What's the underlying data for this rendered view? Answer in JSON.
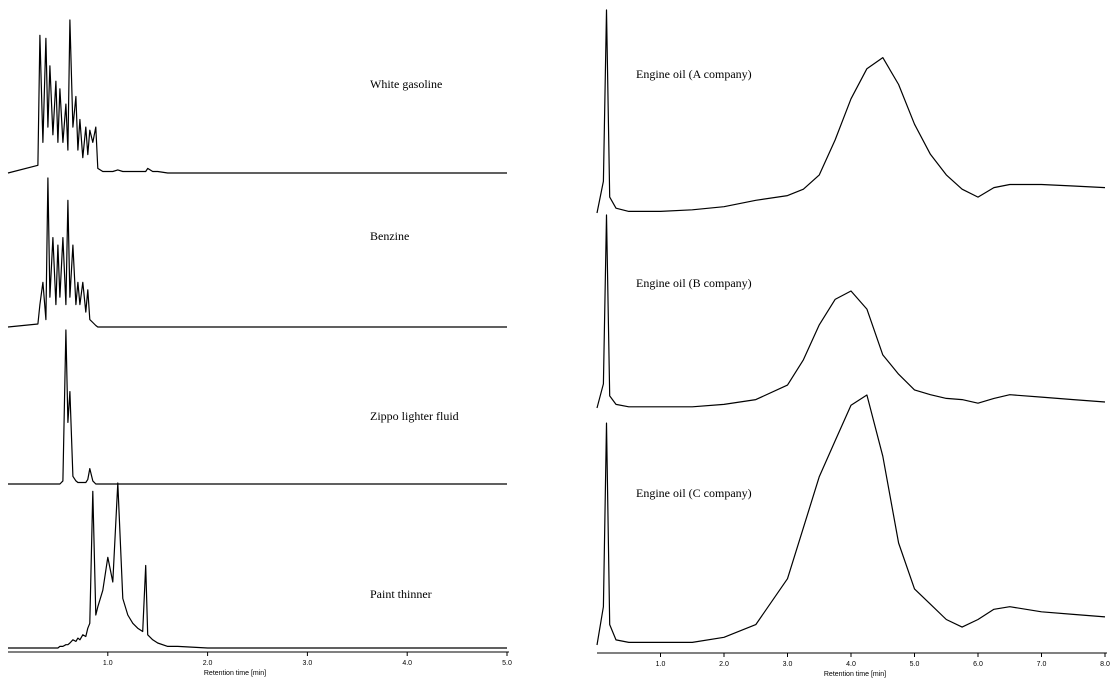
{
  "chart_data": [
    {
      "type": "line",
      "x": [
        0,
        0.3,
        0.32,
        0.35,
        0.38,
        0.4,
        0.42,
        0.45,
        0.48,
        0.5,
        0.52,
        0.55,
        0.58,
        0.6,
        0.62,
        0.65,
        0.68,
        0.7,
        0.72,
        0.75,
        0.78,
        0.8,
        0.82,
        0.85,
        0.88,
        0.9,
        0.95,
        1.0,
        1.05,
        1.1,
        1.15,
        1.2,
        1.25,
        1.3,
        1.35,
        1.38,
        1.4,
        1.45,
        1.5,
        1.6,
        1.7,
        2.0,
        3.0,
        5.0
      ],
      "xlim": [
        0,
        5
      ],
      "xticks": [
        {
          "value": 1,
          "label": "1.0"
        },
        {
          "value": 2,
          "label": "2.0"
        },
        {
          "value": 3,
          "label": "3.0"
        },
        {
          "value": 4,
          "label": "4.0"
        },
        {
          "value": 5,
          "label": "5.0"
        }
      ],
      "xlabel": "Retention time [min]",
      "series": [
        {
          "name": "White gasoline",
          "color": "#000000",
          "values": [
            0,
            5,
            90,
            20,
            88,
            30,
            70,
            25,
            60,
            20,
            55,
            20,
            45,
            15,
            100,
            30,
            50,
            15,
            35,
            10,
            30,
            12,
            28,
            20,
            30,
            3,
            1,
            1,
            1,
            2,
            1,
            1,
            1,
            1,
            1,
            1,
            3,
            1,
            1,
            0,
            0,
            0,
            0,
            0
          ]
        },
        {
          "name": "Benzine",
          "color": "#000000",
          "values": [
            0,
            2,
            15,
            30,
            5,
            100,
            20,
            60,
            15,
            55,
            20,
            60,
            15,
            85,
            20,
            55,
            15,
            30,
            15,
            30,
            10,
            25,
            5,
            3,
            1,
            0,
            0,
            0,
            0,
            0,
            0,
            0,
            0,
            0,
            0,
            0,
            0,
            0,
            0,
            0,
            0,
            0,
            0,
            0
          ]
        },
        {
          "name": "Zippo lighter fluid",
          "color": "#000000",
          "values": [
            0,
            0,
            0,
            0,
            0,
            0,
            0,
            0,
            0,
            0,
            0,
            2,
            100,
            40,
            60,
            5,
            2,
            1,
            1,
            1,
            1,
            3,
            10,
            2,
            0,
            0,
            0,
            0,
            0,
            0,
            0,
            0,
            0,
            0,
            0,
            0,
            0,
            0,
            0,
            0,
            0,
            0,
            0,
            0
          ]
        },
        {
          "name": "Paint thinner",
          "color": "#000000",
          "values": [
            0,
            0,
            0,
            0,
            0,
            0,
            0,
            0,
            0,
            0,
            1,
            1,
            2,
            2,
            3,
            5,
            4,
            6,
            5,
            8,
            7,
            12,
            15,
            95,
            20,
            25,
            35,
            55,
            40,
            100,
            30,
            20,
            15,
            12,
            10,
            50,
            8,
            5,
            3,
            1,
            1,
            0,
            0,
            0
          ]
        }
      ]
    },
    {
      "type": "line",
      "x": [
        0,
        0.1,
        0.15,
        0.2,
        0.3,
        0.5,
        1.0,
        1.5,
        2.0,
        2.5,
        3.0,
        3.25,
        3.5,
        3.75,
        4.0,
        4.25,
        4.5,
        4.75,
        5.0,
        5.25,
        5.5,
        5.75,
        6.0,
        6.25,
        6.5,
        7.0,
        7.5,
        8.0
      ],
      "xlim": [
        0,
        8
      ],
      "xticks": [
        {
          "value": 1,
          "label": "1.0"
        },
        {
          "value": 2,
          "label": "2.0"
        },
        {
          "value": 3,
          "label": "3.0"
        },
        {
          "value": 4,
          "label": "4.0"
        },
        {
          "value": 5,
          "label": "5.0"
        },
        {
          "value": 6,
          "label": "6.0"
        },
        {
          "value": 7,
          "label": "7.0"
        },
        {
          "value": 8,
          "label": "8.0"
        }
      ],
      "xlabel": "Retention time [min]",
      "series": [
        {
          "name": "Engine oil (A company)",
          "color": "#000000",
          "values": [
            0,
            20,
            128,
            10,
            3,
            1,
            1,
            2,
            4,
            8,
            11,
            15,
            24,
            46,
            72,
            91,
            98,
            81,
            56,
            37,
            24,
            15,
            10,
            16,
            18,
            18,
            17,
            16
          ]
        },
        {
          "name": "Engine oil (B company)",
          "color": "#000000",
          "values": [
            0,
            20,
            160,
            10,
            3,
            1,
            1,
            1,
            3,
            7,
            19,
            40,
            69,
            90,
            97,
            82,
            44,
            28,
            15,
            11,
            8,
            7,
            4,
            8,
            11,
            9,
            7,
            5
          ]
        },
        {
          "name": "Engine oil (C company)",
          "color": "#000000",
          "values": [
            0,
            15,
            87,
            8,
            2,
            1,
            1,
            1,
            3,
            8,
            26,
            46,
            66,
            80,
            94,
            98,
            74,
            40,
            22,
            16,
            10,
            7,
            10,
            14,
            15,
            13,
            12,
            11
          ]
        }
      ]
    }
  ]
}
